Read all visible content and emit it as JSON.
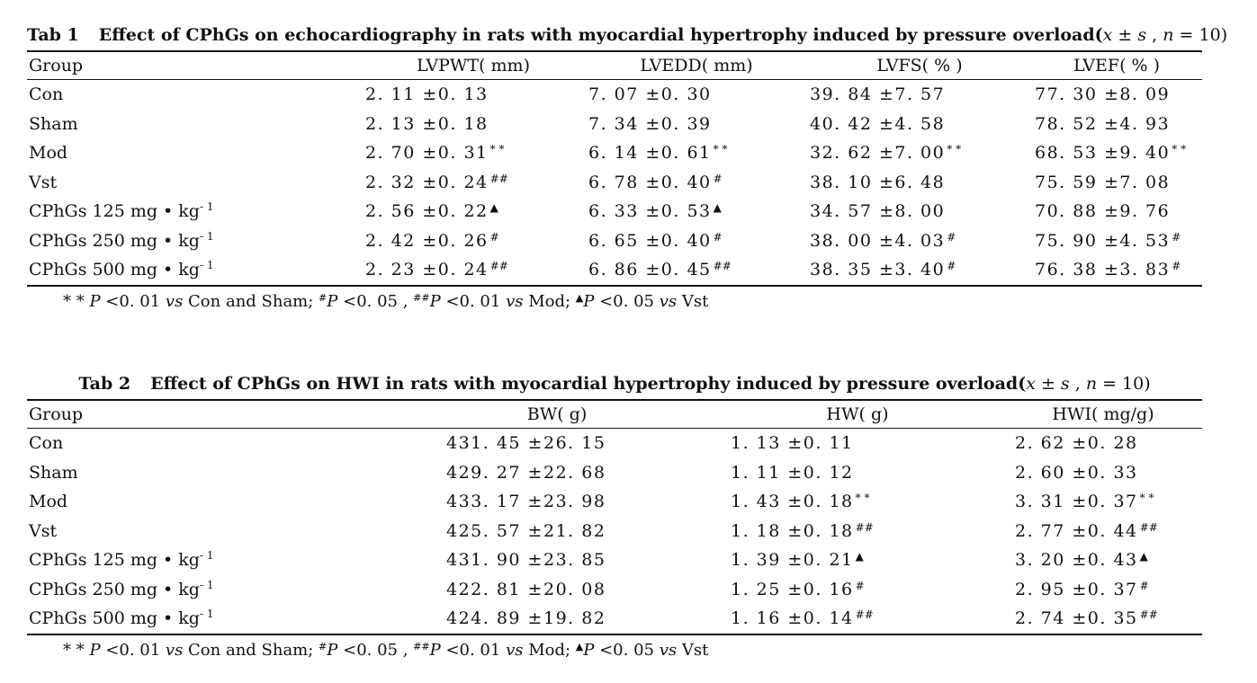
{
  "table1": {
    "caption_num": "Tab 1",
    "caption_text": "Effect of CPhGs on echocardiography in rats with myocardial hypertrophy induced by pressure overload(",
    "caption_stat_x": "x",
    "caption_stat_mid": " ± ",
    "caption_stat_s": "s",
    "caption_stat_comma": " , ",
    "caption_stat_n": "n",
    "caption_stat_end": " = 10)",
    "headers": [
      "Group",
      "LVPWT( mm)",
      "LVEDD( mm)",
      "LVFS( % )",
      "LVEF( % )"
    ],
    "rows": [
      {
        "group": "Con",
        "group_exp": "",
        "cells": [
          {
            "value": "2. 11 ±0. 13",
            "mark": ""
          },
          {
            "value": "7. 07 ±0. 30",
            "mark": ""
          },
          {
            "value": "39. 84 ±7. 57",
            "mark": ""
          },
          {
            "value": "77. 30 ±8. 09",
            "mark": ""
          }
        ]
      },
      {
        "group": "Sham",
        "group_exp": "",
        "cells": [
          {
            "value": "2. 13 ±0. 18",
            "mark": ""
          },
          {
            "value": "7. 34 ±0. 39",
            "mark": ""
          },
          {
            "value": "40. 42 ±4. 58",
            "mark": ""
          },
          {
            "value": "78. 52 ±4. 93",
            "mark": ""
          }
        ]
      },
      {
        "group": "Mod",
        "group_exp": "",
        "cells": [
          {
            "value": "2. 70 ±0. 31",
            "mark": "* *"
          },
          {
            "value": "6. 14 ±0. 61",
            "mark": "* *"
          },
          {
            "value": "32. 62 ±7. 00",
            "mark": "* *"
          },
          {
            "value": "68. 53 ±9. 40",
            "mark": "* *"
          }
        ]
      },
      {
        "group": "Vst",
        "group_exp": "",
        "cells": [
          {
            "value": "2. 32 ±0. 24",
            "mark": "##"
          },
          {
            "value": "6. 78 ±0. 40",
            "mark": "#"
          },
          {
            "value": "38. 10 ±6. 48",
            "mark": ""
          },
          {
            "value": "75. 59 ±7. 08",
            "mark": ""
          }
        ]
      },
      {
        "group": "CPhGs 125 mg • kg",
        "group_exp": "- 1",
        "cells": [
          {
            "value": "2. 56 ±0. 22",
            "mark": "▲"
          },
          {
            "value": "6. 33 ±0. 53",
            "mark": "▲"
          },
          {
            "value": "34. 57 ±8. 00",
            "mark": ""
          },
          {
            "value": "70. 88 ±9. 76",
            "mark": ""
          }
        ]
      },
      {
        "group": "CPhGs 250 mg • kg",
        "group_exp": "- 1",
        "cells": [
          {
            "value": "2. 42 ±0. 26",
            "mark": "#"
          },
          {
            "value": "6. 65 ±0. 40",
            "mark": "#"
          },
          {
            "value": "38. 00 ±4. 03",
            "mark": "#"
          },
          {
            "value": "75. 90 ±4. 53",
            "mark": "#"
          }
        ]
      },
      {
        "group": "CPhGs 500 mg • kg",
        "group_exp": "- 1",
        "cells": [
          {
            "value": "2. 23 ±0. 24",
            "mark": "##"
          },
          {
            "value": "6. 86 ±0. 45",
            "mark": "##"
          },
          {
            "value": "38. 35 ±3. 40",
            "mark": "#"
          },
          {
            "value": "76. 38 ±3. 83",
            "mark": "#"
          }
        ]
      }
    ],
    "footnote": {
      "p1_mark": "* * ",
      "p1_P": "P",
      "p1_text": " <0. 01 ",
      "vs": "vs",
      "p1_ref": " Con and Sham; ",
      "p2_mark": "#",
      "p2_text": " <0. 05 , ",
      "p3_mark": "##",
      "p3_text": " <0. 01 ",
      "p3_ref": " Mod; ",
      "p4_mark": "▲",
      "p4_text": " <0. 05 ",
      "p4_ref": " Vst"
    }
  },
  "table2": {
    "caption_num": "Tab 2",
    "caption_text": "Effect of CPhGs on HWI in rats with myocardial hypertrophy induced by pressure overload(",
    "caption_stat_x": "x",
    "caption_stat_mid": " ± ",
    "caption_stat_s": "s",
    "caption_stat_comma": " , ",
    "caption_stat_n": "n",
    "caption_stat_end": " = 10)",
    "headers": [
      "Group",
      "BW( g)",
      "HW( g)",
      "HWI( mg/g)"
    ],
    "rows": [
      {
        "group": "Con",
        "group_exp": "",
        "cells": [
          {
            "value": "431. 45 ±26. 15",
            "mark": ""
          },
          {
            "value": "1. 13 ±0. 11",
            "mark": ""
          },
          {
            "value": "2. 62 ±0. 28",
            "mark": ""
          }
        ]
      },
      {
        "group": "Sham",
        "group_exp": "",
        "cells": [
          {
            "value": "429. 27 ±22. 68",
            "mark": ""
          },
          {
            "value": "1. 11 ±0. 12",
            "mark": ""
          },
          {
            "value": "2. 60 ±0. 33",
            "mark": ""
          }
        ]
      },
      {
        "group": "Mod",
        "group_exp": "",
        "cells": [
          {
            "value": "433. 17 ±23. 98",
            "mark": ""
          },
          {
            "value": "1. 43 ±0. 18",
            "mark": "* *"
          },
          {
            "value": "3. 31 ±0. 37",
            "mark": "* *"
          }
        ]
      },
      {
        "group": "Vst",
        "group_exp": "",
        "cells": [
          {
            "value": "425. 57 ±21. 82",
            "mark": ""
          },
          {
            "value": "1. 18 ±0. 18",
            "mark": "##"
          },
          {
            "value": "2. 77 ±0. 44",
            "mark": "##"
          }
        ]
      },
      {
        "group": "CPhGs 125 mg • kg",
        "group_exp": "- 1",
        "cells": [
          {
            "value": "431. 90 ±23. 85",
            "mark": ""
          },
          {
            "value": "1. 39 ±0. 21",
            "mark": "▲"
          },
          {
            "value": "3. 20 ±0. 43",
            "mark": "▲"
          }
        ]
      },
      {
        "group": "CPhGs 250 mg • kg",
        "group_exp": "- 1",
        "cells": [
          {
            "value": "422. 81 ±20. 08",
            "mark": ""
          },
          {
            "value": "1. 25 ±0. 16",
            "mark": "#"
          },
          {
            "value": "2. 95 ±0. 37",
            "mark": "#"
          }
        ]
      },
      {
        "group": "CPhGs 500 mg • kg",
        "group_exp": "- 1",
        "cells": [
          {
            "value": "424. 89 ±19. 82",
            "mark": ""
          },
          {
            "value": "1. 16 ±0. 14",
            "mark": "##"
          },
          {
            "value": "2. 74 ±0. 35",
            "mark": "##"
          }
        ]
      }
    ],
    "footnote": {
      "p1_mark": "* * ",
      "p1_P": "P",
      "p1_text": " <0. 01 ",
      "vs": "vs",
      "p1_ref": " Con and Sham; ",
      "p2_mark": "#",
      "p2_text": " <0. 05 , ",
      "p3_mark": "##",
      "p3_text": " <0. 01 ",
      "p3_ref": " Mod; ",
      "p4_mark": "▲",
      "p4_text": " <0. 05 ",
      "p4_ref": " Vst"
    }
  }
}
